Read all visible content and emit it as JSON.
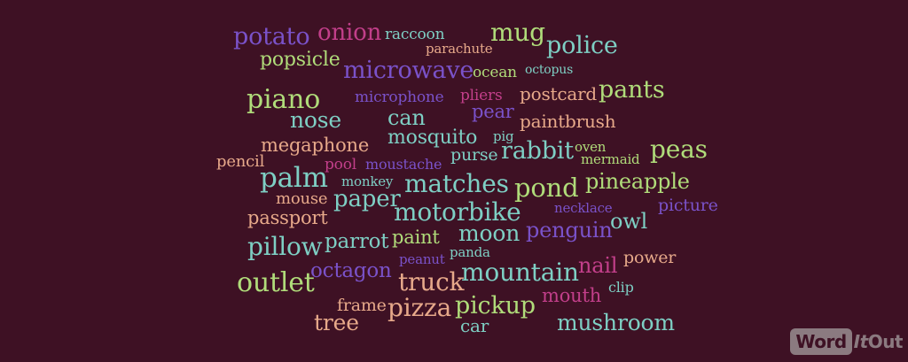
{
  "palette": {
    "background": "#3e1124",
    "teal": "#7ecfc4",
    "green": "#b0dc7a",
    "purple": "#7a52c9",
    "pink": "#c23f8a",
    "peach": "#e7a98a"
  },
  "words": [
    {
      "text": "potato",
      "color": "#7a52c9"
    },
    {
      "text": "onion",
      "color": "#c23f8a"
    },
    {
      "text": "raccoon",
      "color": "#7ecfc4"
    },
    {
      "text": "mug",
      "color": "#b0dc7a"
    },
    {
      "text": "parachute",
      "color": "#e7a98a"
    },
    {
      "text": "police",
      "color": "#7ecfc4"
    },
    {
      "text": "popsicle",
      "color": "#b0dc7a"
    },
    {
      "text": "microwave",
      "color": "#7a52c9"
    },
    {
      "text": "ocean",
      "color": "#b0dc7a"
    },
    {
      "text": "octopus",
      "color": "#7ecfc4"
    },
    {
      "text": "piano",
      "color": "#b0dc7a"
    },
    {
      "text": "microphone",
      "color": "#7a52c9"
    },
    {
      "text": "pliers",
      "color": "#c23f8a"
    },
    {
      "text": "postcard",
      "color": "#e7a98a"
    },
    {
      "text": "pants",
      "color": "#b0dc7a"
    },
    {
      "text": "nose",
      "color": "#7ecfc4"
    },
    {
      "text": "can",
      "color": "#7ecfc4"
    },
    {
      "text": "pear",
      "color": "#7a52c9"
    },
    {
      "text": "paintbrush",
      "color": "#e7a98a"
    },
    {
      "text": "megaphone",
      "color": "#e7a98a"
    },
    {
      "text": "mosquito",
      "color": "#7ecfc4"
    },
    {
      "text": "pig",
      "color": "#7ecfc4"
    },
    {
      "text": "pencil",
      "color": "#e7a98a"
    },
    {
      "text": "purse",
      "color": "#7ecfc4"
    },
    {
      "text": "rabbit",
      "color": "#7ecfc4"
    },
    {
      "text": "oven",
      "color": "#b0dc7a"
    },
    {
      "text": "mermaid",
      "color": "#b0dc7a"
    },
    {
      "text": "peas",
      "color": "#b0dc7a"
    },
    {
      "text": "pool",
      "color": "#c23f8a"
    },
    {
      "text": "moustache",
      "color": "#7a52c9"
    },
    {
      "text": "palm",
      "color": "#7ecfc4"
    },
    {
      "text": "monkey",
      "color": "#7ecfc4"
    },
    {
      "text": "matches",
      "color": "#7ecfc4"
    },
    {
      "text": "pond",
      "color": "#b0dc7a"
    },
    {
      "text": "pineapple",
      "color": "#b0dc7a"
    },
    {
      "text": "mouse",
      "color": "#e7a98a"
    },
    {
      "text": "paper",
      "color": "#7ecfc4"
    },
    {
      "text": "necklace",
      "color": "#7a52c9"
    },
    {
      "text": "picture",
      "color": "#7a52c9"
    },
    {
      "text": "passport",
      "color": "#e7a98a"
    },
    {
      "text": "motorbike",
      "color": "#7ecfc4"
    },
    {
      "text": "owl",
      "color": "#7ecfc4"
    },
    {
      "text": "moon",
      "color": "#7ecfc4"
    },
    {
      "text": "penguin",
      "color": "#7a52c9"
    },
    {
      "text": "pillow",
      "color": "#7ecfc4"
    },
    {
      "text": "parrot",
      "color": "#7ecfc4"
    },
    {
      "text": "paint",
      "color": "#b0dc7a"
    },
    {
      "text": "panda",
      "color": "#7ecfc4"
    },
    {
      "text": "power",
      "color": "#e7a98a"
    },
    {
      "text": "peanut",
      "color": "#7a52c9"
    },
    {
      "text": "octagon",
      "color": "#7a52c9"
    },
    {
      "text": "mountain",
      "color": "#7ecfc4"
    },
    {
      "text": "nail",
      "color": "#c23f8a"
    },
    {
      "text": "outlet",
      "color": "#b0dc7a"
    },
    {
      "text": "truck",
      "color": "#e7a98a"
    },
    {
      "text": "clip",
      "color": "#7ecfc4"
    },
    {
      "text": "mouth",
      "color": "#c23f8a"
    },
    {
      "text": "frame",
      "color": "#e7a98a"
    },
    {
      "text": "pizza",
      "color": "#e7a98a"
    },
    {
      "text": "pickup",
      "color": "#b0dc7a"
    },
    {
      "text": "tree",
      "color": "#e7a98a"
    },
    {
      "text": "car",
      "color": "#7ecfc4"
    },
    {
      "text": "mushroom",
      "color": "#7ecfc4"
    }
  ],
  "logo": {
    "word": "Word",
    "it": "It",
    "out": "Out"
  }
}
